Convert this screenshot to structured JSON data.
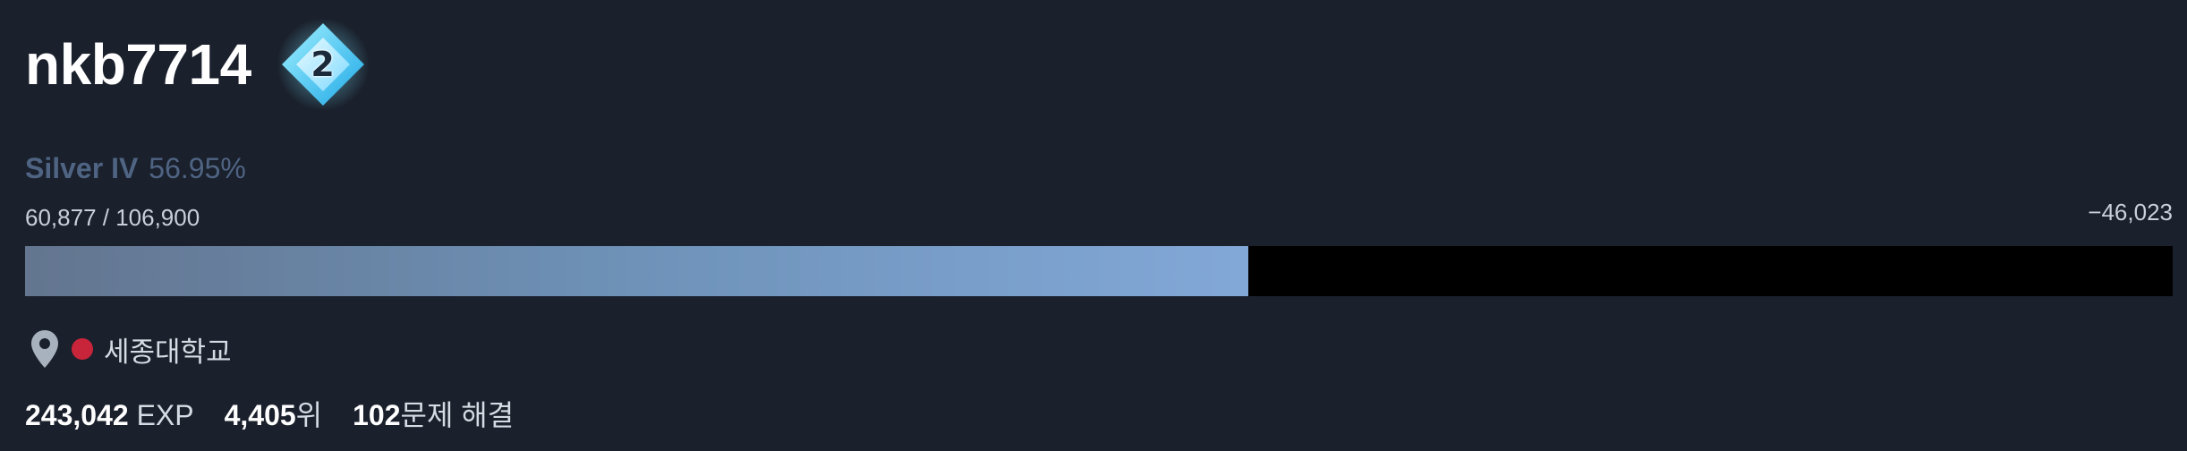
{
  "profile": {
    "username": "nkb7714",
    "tier_number": "2",
    "tier_color": "#4dd3ff"
  },
  "rank": {
    "name": "Silver IV",
    "percent": "56.95%",
    "progress_fraction": 0.5695
  },
  "exp": {
    "current_over_next": "60,877 / 106,900",
    "remaining": "−46,023"
  },
  "school": {
    "icon": "map-pin-icon",
    "flag_color": "#c8243a",
    "name": "세종대학교"
  },
  "stats": {
    "exp_value": "243,042",
    "exp_unit": "EXP",
    "rank_value": "4,405",
    "rank_unit": "위",
    "solved_value": "102",
    "solved_unit": "문제 해결"
  }
}
